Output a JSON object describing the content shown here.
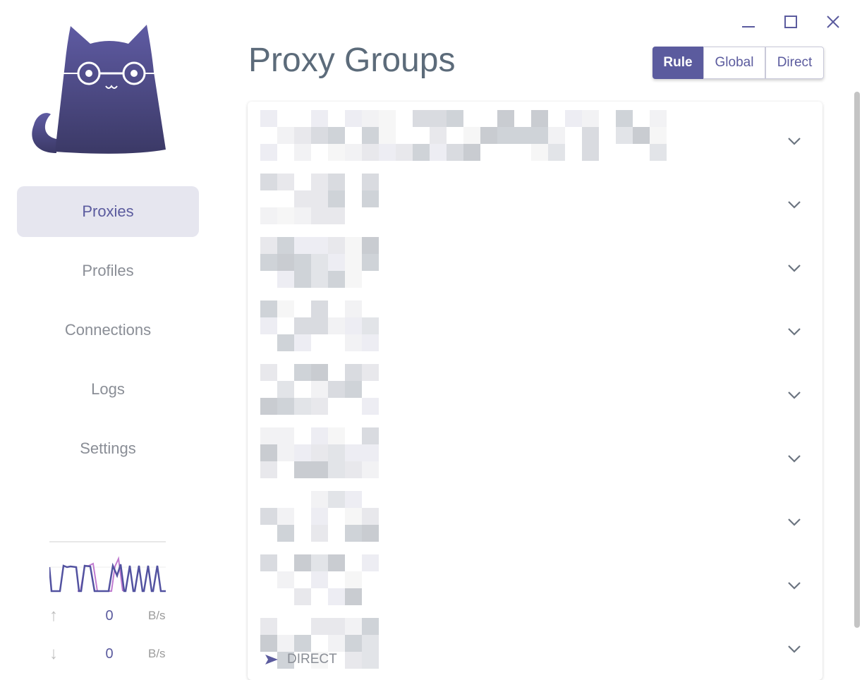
{
  "window": {
    "controls": [
      "minimize-icon",
      "maximize-icon",
      "close-icon"
    ]
  },
  "sidebar": {
    "items": [
      {
        "label": "Proxies",
        "active": true
      },
      {
        "label": "Profiles",
        "active": false
      },
      {
        "label": "Connections",
        "active": false
      },
      {
        "label": "Logs",
        "active": false
      },
      {
        "label": "Settings",
        "active": false
      }
    ],
    "traffic": {
      "upload_value": "0",
      "upload_unit": "B/s",
      "download_value": "0",
      "download_unit": "B/s"
    }
  },
  "main": {
    "title": "Proxy Groups",
    "modes": [
      {
        "label": "Rule",
        "selected": true
      },
      {
        "label": "Global",
        "selected": false
      },
      {
        "label": "Direct",
        "selected": false
      }
    ],
    "groups_count_visible": 9,
    "last_group_current": "DIRECT"
  },
  "colors": {
    "accent": "#5b5b9e",
    "title": "#5c6b7a",
    "nav_active_bg": "#e6e6ef"
  }
}
